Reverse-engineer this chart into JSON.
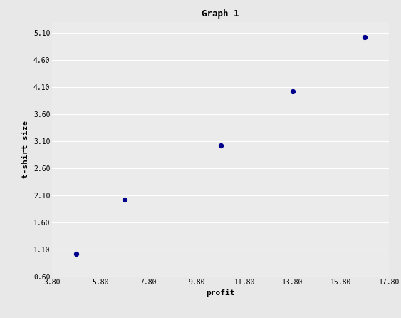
{
  "title": "Graph 1",
  "xlabel": "profit",
  "ylabel": "t-shirt size",
  "x_data": [
    4.8,
    6.8,
    10.8,
    13.8,
    16.8
  ],
  "y_data": [
    1.02,
    2.02,
    3.02,
    4.02,
    5.02
  ],
  "dot_color": "#00008B",
  "dot_size": 18,
  "xlim": [
    3.8,
    17.8
  ],
  "ylim": [
    0.6,
    5.3
  ],
  "xticks": [
    3.8,
    5.8,
    7.8,
    9.8,
    11.8,
    13.8,
    15.8,
    17.8
  ],
  "yticks": [
    0.6,
    1.1,
    1.6,
    2.1,
    2.6,
    3.1,
    3.6,
    4.1,
    4.6,
    5.1
  ],
  "bg_color": "#e8e8e8",
  "axes_bg_color": "#ebebeb",
  "title_fontsize": 9,
  "label_fontsize": 8,
  "tick_fontsize": 7,
  "grid_color": "#ffffff",
  "title_font": "monospace",
  "label_font": "monospace",
  "tick_font": "monospace",
  "figsize": [
    5.63,
    4.46
  ],
  "dpi": 100
}
